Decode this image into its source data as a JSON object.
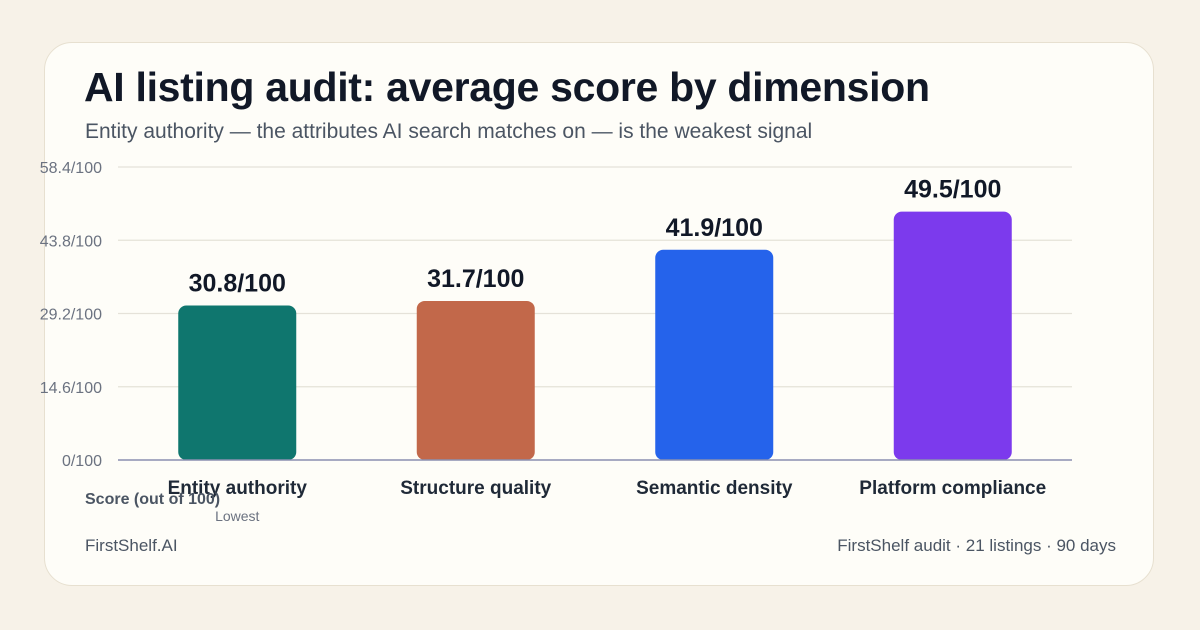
{
  "header": {
    "title": "AI listing audit: average score by dimension",
    "subtitle": "Entity authority — the attributes AI search matches on — is the weakest signal"
  },
  "footer": {
    "brand": "FirstShelf.AI",
    "source": "FirstShelf audit · 21 listings · 90 days"
  },
  "colors": {
    "background": "#f7f2e8",
    "card": "#fefdf8",
    "entity_authority": "#0f766e",
    "structure_quality": "#c2684a",
    "semantic_density": "#2563eb",
    "platform_compliance": "#7c3aed"
  },
  "chart_data": {
    "type": "bar",
    "categories": [
      "Entity authority",
      "Structure quality",
      "Semantic density",
      "Platform compliance"
    ],
    "values": [
      30.8,
      31.7,
      41.9,
      49.5
    ],
    "value_labels": [
      "30.8/100",
      "31.7/100",
      "41.9/100",
      "49.5/100"
    ],
    "category_notes": [
      "Lowest",
      "",
      "",
      ""
    ],
    "bar_colors": [
      "#0f766e",
      "#c2684a",
      "#2563eb",
      "#7c3aed"
    ],
    "yticks": [
      0,
      14.6,
      29.2,
      43.8,
      58.4
    ],
    "ytick_labels": [
      "0/100",
      "14.6/100",
      "29.2/100",
      "43.8/100",
      "58.4/100"
    ],
    "ylim": [
      0,
      58.4
    ],
    "ylabel": "Score (out of 100)",
    "xlabel": "",
    "grid": true,
    "legend": "none"
  }
}
